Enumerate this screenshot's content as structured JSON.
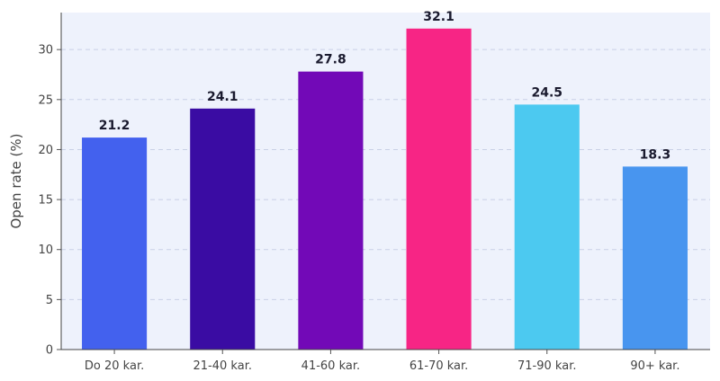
{
  "chart_data": {
    "type": "bar",
    "title": "",
    "xlabel": "",
    "ylabel": "Open rate (%)",
    "categories": [
      "Do 20 kar.",
      "21-40 kar.",
      "41-60 kar.",
      "61-70 kar.",
      "71-90 kar.",
      "90+ kar."
    ],
    "values": [
      21.2,
      24.1,
      27.8,
      32.1,
      24.5,
      18.3
    ],
    "value_labels": [
      "21.2",
      "24.1",
      "27.8",
      "32.1",
      "24.5",
      "18.3"
    ],
    "colors": [
      "#4361ee",
      "#3a0ca3",
      "#7209b7",
      "#f72585",
      "#4cc9f0",
      "#4895ef"
    ],
    "ylim": [
      0,
      33.7
    ],
    "yticks": [
      0,
      5,
      10,
      15,
      20,
      25,
      30
    ],
    "grid": true,
    "legend": "none",
    "background": "#eef2fc"
  }
}
